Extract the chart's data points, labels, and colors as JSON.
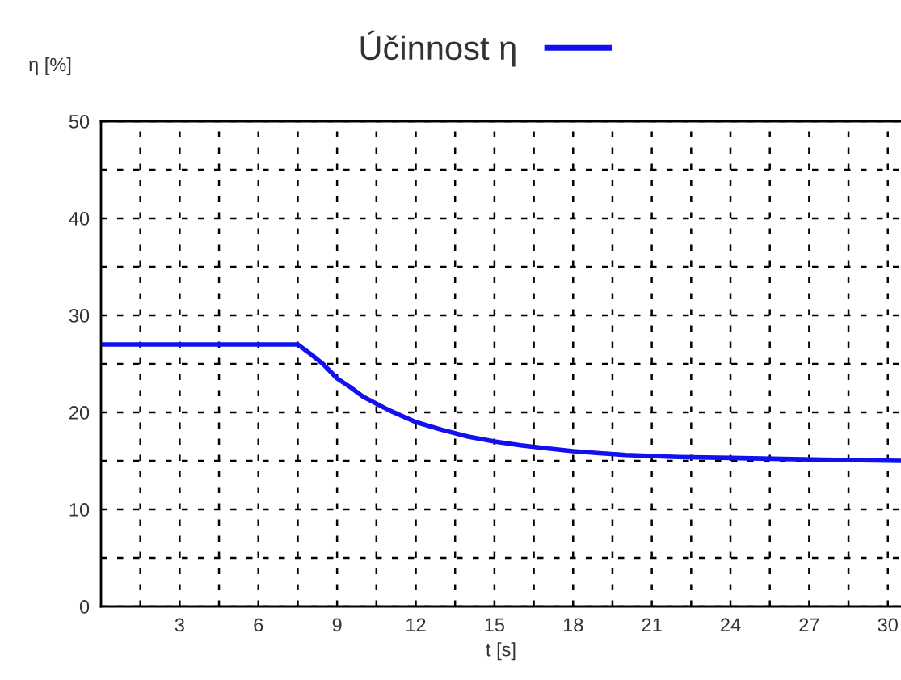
{
  "chart_data": {
    "type": "line",
    "xlabel": "t [s]",
    "ylabel": "η [%]",
    "x": [
      0,
      7.5,
      8,
      8.5,
      9,
      9.5,
      10,
      11,
      12,
      13,
      14,
      15,
      16,
      17,
      18,
      19,
      20,
      21,
      22,
      24,
      26,
      28,
      30.5
    ],
    "series": [
      {
        "name": "Účinnost η",
        "color": "#1010f0",
        "values": [
          27,
          27,
          26.0,
          24.9,
          23.5,
          22.6,
          21.6,
          20.2,
          19.0,
          18.2,
          17.5,
          17.0,
          16.6,
          16.3,
          16.0,
          15.8,
          15.6,
          15.5,
          15.4,
          15.3,
          15.2,
          15.1,
          15.0
        ]
      }
    ],
    "xlim": [
      0,
      30.5
    ],
    "ylim": [
      0,
      50
    ],
    "xticks": [
      {
        "value": 1.5,
        "label": null
      },
      3,
      {
        "value": 4.5,
        "label": null
      },
      6,
      {
        "value": 7.5,
        "label": null
      },
      9,
      {
        "value": 10.5,
        "label": null
      },
      12,
      {
        "value": 13.5,
        "label": null
      },
      15,
      {
        "value": 16.5,
        "label": null
      },
      18,
      {
        "value": 19.5,
        "label": null
      },
      21,
      {
        "value": 22.5,
        "label": null
      },
      24,
      {
        "value": 25.5,
        "label": null
      },
      27,
      {
        "value": 28.5,
        "label": null
      },
      30
    ],
    "yticks": [
      0,
      {
        "value": 5,
        "label": null
      },
      10,
      {
        "value": 15,
        "label": null
      },
      20,
      {
        "value": 25,
        "label": null
      },
      30,
      {
        "value": 35,
        "label": null
      },
      40,
      {
        "value": 45,
        "label": null
      },
      50
    ],
    "grid": true,
    "legend": "top",
    "marker": "none",
    "line_style": "solid"
  }
}
